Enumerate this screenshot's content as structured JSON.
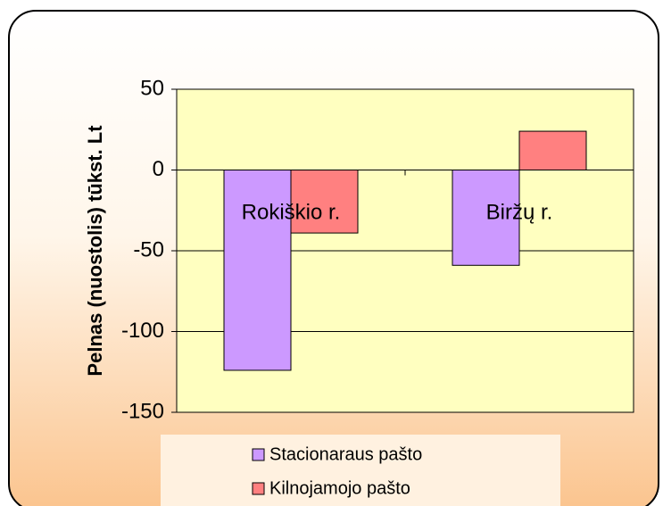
{
  "chart_data": {
    "type": "bar",
    "y_label": "Pelnas (nuostolis) tūkst. Lt",
    "categories": [
      "Rokiškio r.",
      "Biržų r."
    ],
    "series": [
      {
        "name": "Stacionaraus pašto",
        "color": "#cc99ff",
        "values": [
          -124,
          -59
        ]
      },
      {
        "name": "Kilnojamojo pašto",
        "color": "#ff8080",
        "values": [
          -39,
          24
        ]
      }
    ],
    "ylim": [
      -150,
      50
    ],
    "yticks": [
      -150,
      -100,
      -50,
      0,
      50
    ],
    "grid": true,
    "legend": "bottom"
  }
}
